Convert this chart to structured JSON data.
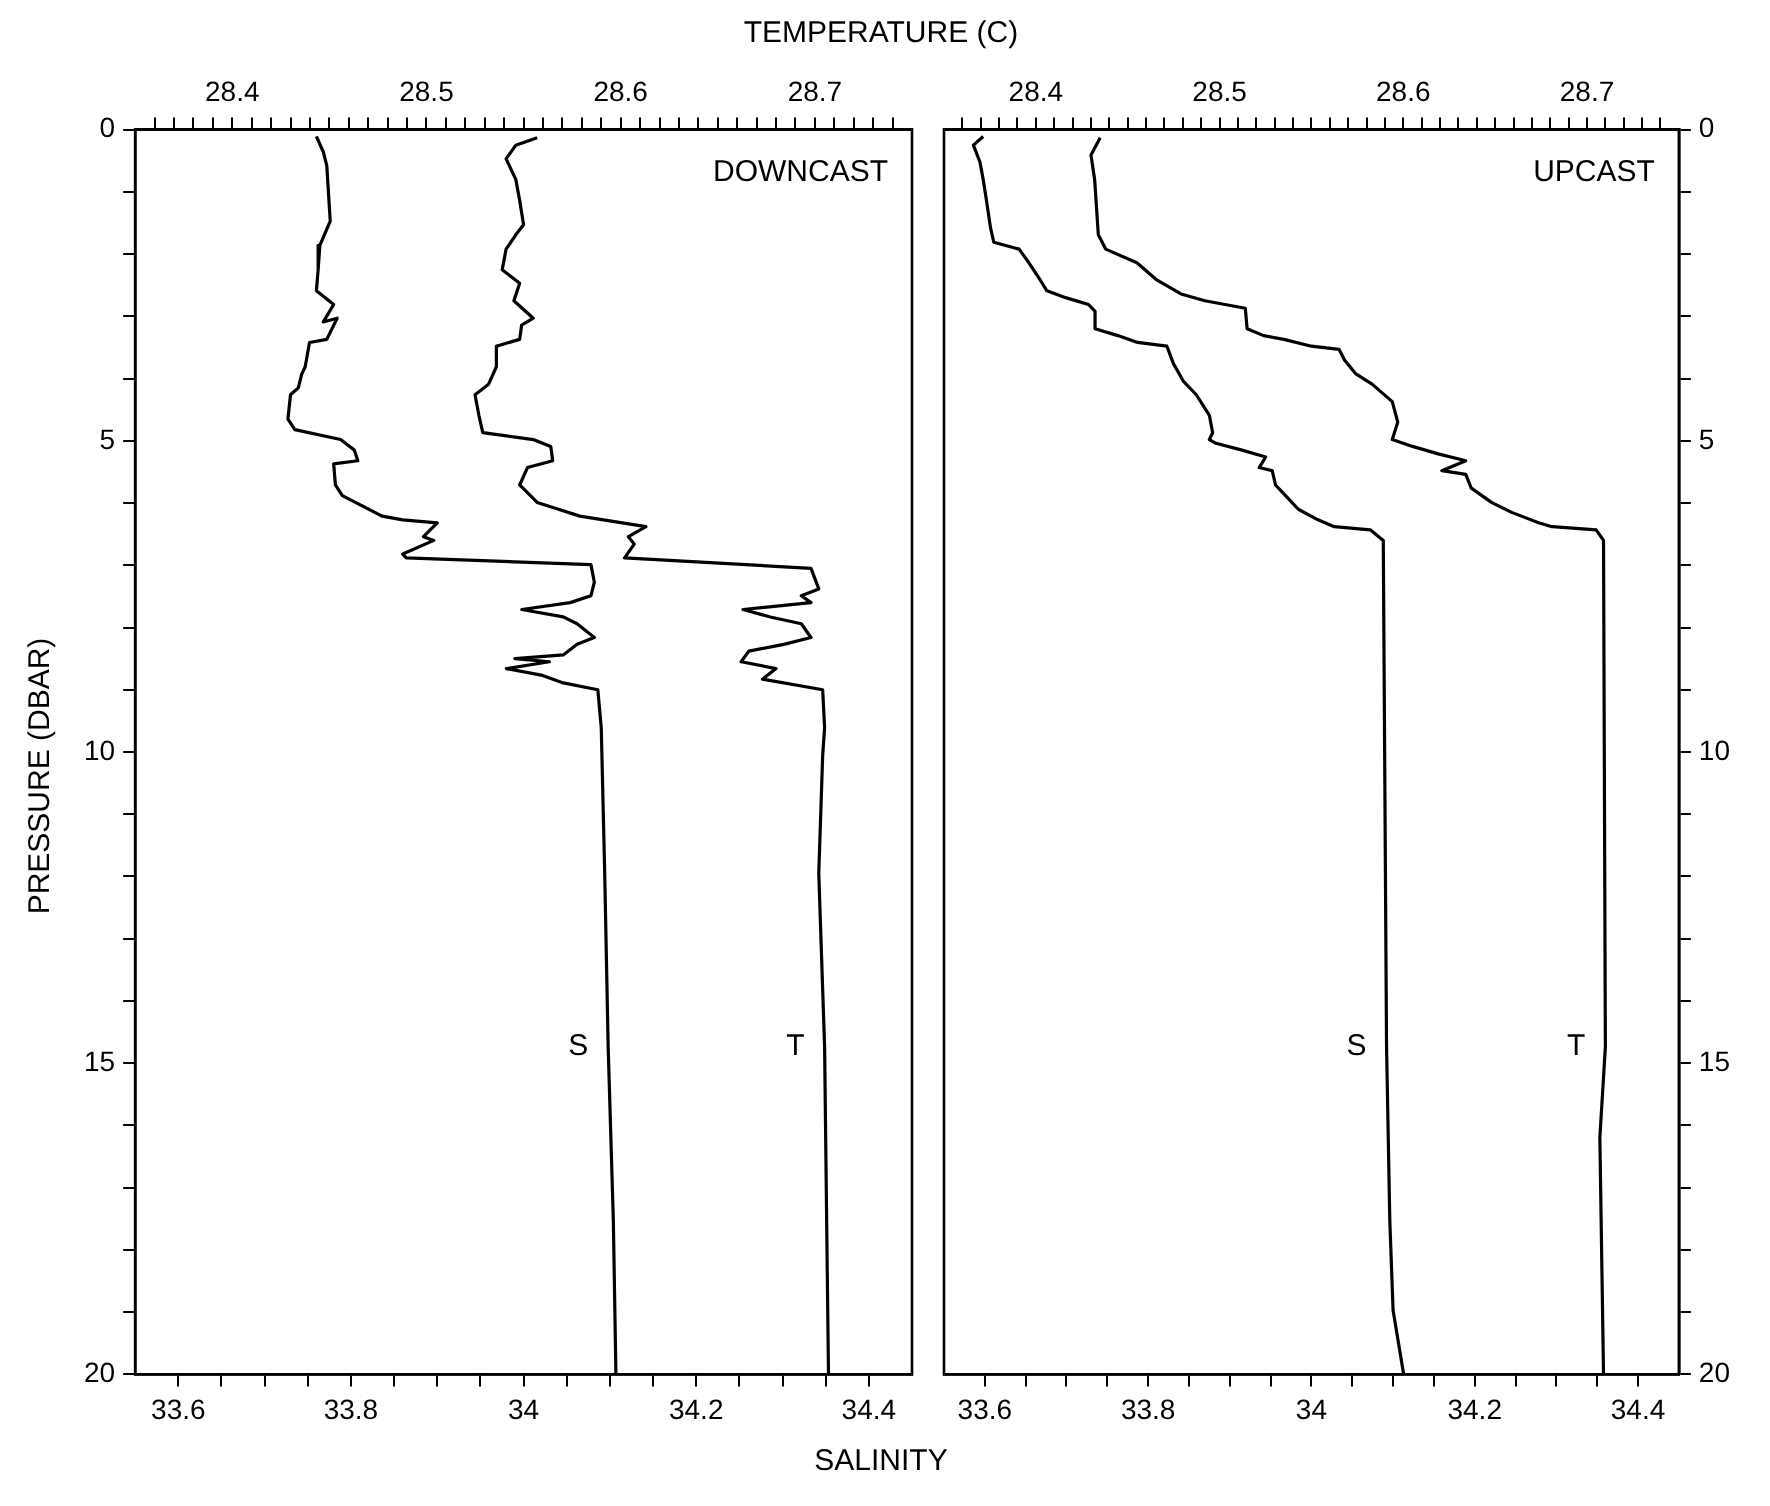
{
  "chart_data": [
    {
      "type": "line",
      "xlabel": "SALINITY",
      "x2label": "TEMPERATURE (C)",
      "ylabel": "PRESSURE (DBAR)",
      "annotations": [
        "DOWNCAST"
      ],
      "grid": false,
      "legend": false,
      "xlim": [
        33.55,
        34.45
      ],
      "x2lim": [
        28.35,
        28.75
      ],
      "ylim": [
        20,
        0
      ],
      "xticks": [
        33.6,
        {
          "value": 33.65,
          "label": null
        },
        {
          "value": 33.7,
          "label": null
        },
        {
          "value": 33.75,
          "label": null
        },
        33.8,
        {
          "value": 33.85,
          "label": null
        },
        {
          "value": 33.9,
          "label": null
        },
        {
          "value": 33.95,
          "label": null
        },
        34,
        {
          "value": 34.05,
          "label": null
        },
        {
          "value": 34.1,
          "label": null
        },
        {
          "value": 34.15,
          "label": null
        },
        34.2,
        {
          "value": 34.25,
          "label": null
        },
        {
          "value": 34.3,
          "label": null
        },
        {
          "value": 34.35,
          "label": null
        },
        34.4
      ],
      "x2ticks": [
        {
          "value": 28.36,
          "label": null
        },
        {
          "value": 28.37,
          "label": null
        },
        {
          "value": 28.38,
          "label": null
        },
        {
          "value": 28.39,
          "label": null
        },
        28.4,
        {
          "value": 28.41,
          "label": null
        },
        {
          "value": 28.42,
          "label": null
        },
        {
          "value": 28.43,
          "label": null
        },
        {
          "value": 28.44,
          "label": null
        },
        {
          "value": 28.45,
          "label": null
        },
        {
          "value": 28.46,
          "label": null
        },
        {
          "value": 28.47,
          "label": null
        },
        {
          "value": 28.48,
          "label": null
        },
        {
          "value": 28.49,
          "label": null
        },
        28.5,
        {
          "value": 28.51,
          "label": null
        },
        {
          "value": 28.52,
          "label": null
        },
        {
          "value": 28.53,
          "label": null
        },
        {
          "value": 28.54,
          "label": null
        },
        {
          "value": 28.55,
          "label": null
        },
        {
          "value": 28.56,
          "label": null
        },
        {
          "value": 28.57,
          "label": null
        },
        {
          "value": 28.58,
          "label": null
        },
        {
          "value": 28.59,
          "label": null
        },
        28.6,
        {
          "value": 28.61,
          "label": null
        },
        {
          "value": 28.62,
          "label": null
        },
        {
          "value": 28.63,
          "label": null
        },
        {
          "value": 28.64,
          "label": null
        },
        {
          "value": 28.65,
          "label": null
        },
        {
          "value": 28.66,
          "label": null
        },
        {
          "value": 28.67,
          "label": null
        },
        {
          "value": 28.68,
          "label": null
        },
        {
          "value": 28.69,
          "label": null
        },
        28.7,
        {
          "value": 28.71,
          "label": null
        },
        {
          "value": 28.72,
          "label": null
        },
        {
          "value": 28.73,
          "label": null
        },
        {
          "value": 28.74,
          "label": null
        }
      ],
      "yticks": [
        0,
        {
          "value": 1,
          "label": null
        },
        {
          "value": 2,
          "label": null
        },
        {
          "value": 3,
          "label": null
        },
        {
          "value": 4,
          "label": null
        },
        5,
        {
          "value": 6,
          "label": null
        },
        {
          "value": 7,
          "label": null
        },
        {
          "value": 8,
          "label": null
        },
        {
          "value": 9,
          "label": null
        },
        10,
        {
          "value": 11,
          "label": null
        },
        {
          "value": 12,
          "label": null
        },
        {
          "value": 13,
          "label": null
        },
        {
          "value": 14,
          "label": null
        },
        15,
        {
          "value": 16,
          "label": null
        },
        {
          "value": 17,
          "label": null
        },
        {
          "value": 18,
          "label": null
        },
        {
          "value": 19,
          "label": null
        },
        20
      ],
      "series": [
        {
          "name": "S",
          "color": "#000000",
          "x": [
            33.76,
            33.768,
            33.772,
            33.776,
            33.764,
            33.762,
            33.76,
            33.78,
            33.768,
            33.784,
            33.772,
            33.752,
            33.747,
            33.743,
            33.739,
            33.73,
            33.727,
            33.735,
            33.788,
            33.804,
            33.808,
            33.78,
            33.782,
            33.79,
            33.836,
            33.86,
            33.9,
            33.884,
            33.896,
            33.86,
            33.864,
            34.078,
            34.082,
            34.078,
            34.054,
            33.998,
            34.046,
            34.062,
            34.082,
            34.062,
            34.046,
            33.99,
            34.03,
            33.98,
            34.022,
            34.046,
            34.086,
            34.09,
            34.094,
            34.098,
            34.104,
            34.107
          ],
          "values": [
            0.11,
            0.36,
            0.58,
            1.47,
            1.86,
            2.25,
            2.59,
            2.81,
            3.09,
            3.03,
            3.37,
            3.42,
            3.81,
            3.93,
            4.15,
            4.26,
            4.65,
            4.82,
            4.98,
            5.15,
            5.32,
            5.37,
            5.71,
            5.88,
            6.21,
            6.27,
            6.32,
            6.54,
            6.6,
            6.82,
            6.88,
            6.99,
            7.27,
            7.49,
            7.6,
            7.71,
            7.83,
            7.94,
            8.16,
            8.27,
            8.44,
            8.5,
            8.55,
            8.66,
            8.77,
            8.89,
            9.0,
            9.61,
            11.95,
            14.74,
            17.53,
            20.0
          ]
        },
        {
          "name": "T",
          "axis": "x2",
          "color": "#000000",
          "x": [
            28.557,
            28.546,
            28.541,
            28.546,
            28.548,
            28.55,
            28.546,
            28.541,
            28.539,
            28.548,
            28.545,
            28.555,
            28.549,
            28.548,
            28.536,
            28.536,
            28.532,
            28.525,
            28.527,
            28.529,
            28.555,
            28.564,
            28.565,
            28.552,
            28.548,
            28.557,
            28.579,
            28.613,
            28.604,
            28.607,
            28.602,
            28.698,
            28.702,
            28.693,
            28.698,
            28.663,
            28.677,
            28.693,
            28.698,
            28.684,
            28.666,
            28.662,
            28.68,
            28.673,
            28.704,
            28.705,
            28.704,
            28.702,
            28.705,
            28.707
          ],
          "values": [
            0.13,
            0.25,
            0.47,
            0.8,
            1.14,
            1.53,
            1.69,
            1.92,
            2.25,
            2.47,
            2.75,
            3.03,
            3.14,
            3.37,
            3.48,
            3.81,
            4.09,
            4.26,
            4.59,
            4.87,
            4.98,
            5.09,
            5.32,
            5.43,
            5.71,
            5.99,
            6.21,
            6.38,
            6.54,
            6.66,
            6.88,
            7.05,
            7.38,
            7.49,
            7.6,
            7.71,
            7.83,
            7.94,
            8.16,
            8.27,
            8.38,
            8.55,
            8.66,
            8.83,
            9.0,
            9.61,
            10.06,
            11.95,
            14.74,
            20.0
          ]
        }
      ]
    },
    {
      "type": "line",
      "annotations": [
        "UPCAST"
      ],
      "grid": false,
      "legend": false,
      "xlim": [
        33.55,
        34.45
      ],
      "x2lim": [
        28.35,
        28.75
      ],
      "ylim": [
        20,
        0
      ],
      "xticks": [
        33.6,
        {
          "value": 33.65,
          "label": null
        },
        {
          "value": 33.7,
          "label": null
        },
        {
          "value": 33.75,
          "label": null
        },
        33.8,
        {
          "value": 33.85,
          "label": null
        },
        {
          "value": 33.9,
          "label": null
        },
        {
          "value": 33.95,
          "label": null
        },
        34,
        {
          "value": 34.05,
          "label": null
        },
        {
          "value": 34.1,
          "label": null
        },
        {
          "value": 34.15,
          "label": null
        },
        34.2,
        {
          "value": 34.25,
          "label": null
        },
        {
          "value": 34.3,
          "label": null
        },
        {
          "value": 34.35,
          "label": null
        },
        34.4
      ],
      "x2ticks": [
        {
          "value": 28.36,
          "label": null
        },
        {
          "value": 28.37,
          "label": null
        },
        {
          "value": 28.38,
          "label": null
        },
        {
          "value": 28.39,
          "label": null
        },
        28.4,
        {
          "value": 28.41,
          "label": null
        },
        {
          "value": 28.42,
          "label": null
        },
        {
          "value": 28.43,
          "label": null
        },
        {
          "value": 28.44,
          "label": null
        },
        {
          "value": 28.45,
          "label": null
        },
        {
          "value": 28.46,
          "label": null
        },
        {
          "value": 28.47,
          "label": null
        },
        {
          "value": 28.48,
          "label": null
        },
        {
          "value": 28.49,
          "label": null
        },
        28.5,
        {
          "value": 28.51,
          "label": null
        },
        {
          "value": 28.52,
          "label": null
        },
        {
          "value": 28.53,
          "label": null
        },
        {
          "value": 28.54,
          "label": null
        },
        {
          "value": 28.55,
          "label": null
        },
        {
          "value": 28.56,
          "label": null
        },
        {
          "value": 28.57,
          "label": null
        },
        {
          "value": 28.58,
          "label": null
        },
        {
          "value": 28.59,
          "label": null
        },
        28.6,
        {
          "value": 28.61,
          "label": null
        },
        {
          "value": 28.62,
          "label": null
        },
        {
          "value": 28.63,
          "label": null
        },
        {
          "value": 28.64,
          "label": null
        },
        {
          "value": 28.65,
          "label": null
        },
        {
          "value": 28.66,
          "label": null
        },
        {
          "value": 28.67,
          "label": null
        },
        {
          "value": 28.68,
          "label": null
        },
        {
          "value": 28.69,
          "label": null
        },
        28.7,
        {
          "value": 28.71,
          "label": null
        },
        {
          "value": 28.72,
          "label": null
        },
        {
          "value": 28.73,
          "label": null
        },
        {
          "value": 28.74,
          "label": null
        }
      ],
      "yticks": [
        0,
        {
          "value": 1,
          "label": null
        },
        {
          "value": 2,
          "label": null
        },
        {
          "value": 3,
          "label": null
        },
        {
          "value": 4,
          "label": null
        },
        5,
        {
          "value": 6,
          "label": null
        },
        {
          "value": 7,
          "label": null
        },
        {
          "value": 8,
          "label": null
        },
        {
          "value": 9,
          "label": null
        },
        10,
        {
          "value": 11,
          "label": null
        },
        {
          "value": 12,
          "label": null
        },
        {
          "value": 13,
          "label": null
        },
        {
          "value": 14,
          "label": null
        },
        15,
        {
          "value": 16,
          "label": null
        },
        {
          "value": 17,
          "label": null
        },
        {
          "value": 18,
          "label": null
        },
        {
          "value": 19,
          "label": null
        },
        20
      ],
      "series": [
        {
          "name": "S",
          "color": "#000000",
          "x": [
            33.598,
            33.586,
            33.594,
            33.598,
            33.602,
            33.607,
            33.611,
            33.642,
            33.654,
            33.668,
            33.676,
            33.699,
            33.727,
            33.735,
            33.735,
            33.763,
            33.787,
            33.823,
            33.831,
            33.843,
            33.859,
            33.875,
            33.879,
            33.875,
            33.883,
            33.915,
            33.944,
            33.936,
            33.952,
            33.956,
            33.964,
            33.984,
            34.008,
            34.028,
            34.072,
            34.088,
            34.092,
            34.096,
            34.1,
            34.113
          ],
          "values": [
            0.11,
            0.25,
            0.52,
            0.8,
            1.14,
            1.58,
            1.81,
            1.92,
            2.14,
            2.42,
            2.59,
            2.7,
            2.81,
            2.92,
            3.2,
            3.31,
            3.42,
            3.48,
            3.76,
            4.04,
            4.26,
            4.59,
            4.87,
            4.98,
            5.04,
            5.15,
            5.26,
            5.43,
            5.48,
            5.71,
            5.82,
            6.1,
            6.27,
            6.38,
            6.43,
            6.6,
            14.74,
            17.53,
            18.97,
            20.0
          ]
        },
        {
          "name": "T",
          "axis": "x2",
          "color": "#000000",
          "x": [
            28.435,
            28.43,
            28.432,
            28.434,
            28.438,
            28.455,
            28.466,
            28.479,
            28.492,
            28.514,
            28.515,
            28.524,
            28.535,
            28.55,
            28.565,
            28.568,
            28.574,
            28.583,
            28.594,
            28.597,
            28.594,
            28.605,
            28.619,
            28.634,
            28.621,
            28.634,
            28.637,
            28.648,
            28.659,
            28.674,
            28.681,
            28.705,
            28.709,
            28.71,
            28.707,
            28.709
          ],
          "values": [
            0.13,
            0.41,
            0.8,
            1.69,
            1.92,
            2.14,
            2.42,
            2.64,
            2.75,
            2.87,
            3.2,
            3.31,
            3.37,
            3.48,
            3.53,
            3.7,
            3.92,
            4.09,
            4.37,
            4.7,
            4.98,
            5.09,
            5.21,
            5.32,
            5.48,
            5.54,
            5.76,
            5.99,
            6.15,
            6.32,
            6.38,
            6.43,
            6.6,
            14.74,
            16.19,
            20.0
          ]
        }
      ]
    }
  ]
}
